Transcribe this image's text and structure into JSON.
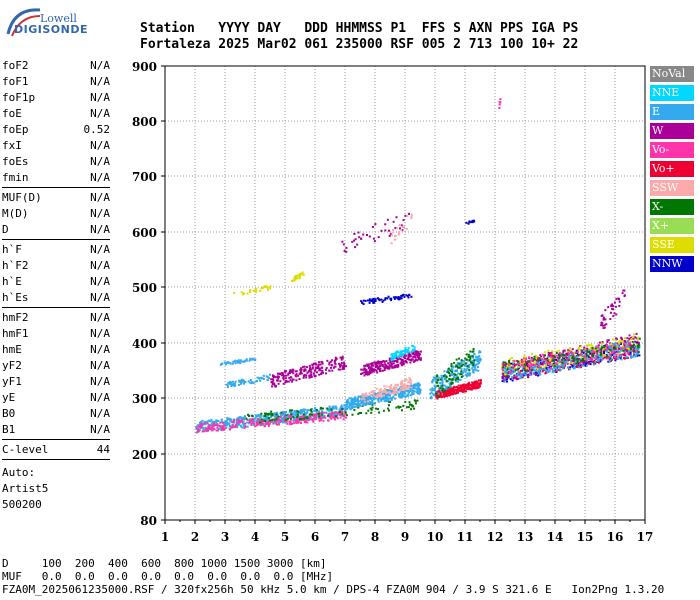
{
  "logo": {
    "line1": "Lowell",
    "line2": "DIGISONDE"
  },
  "header": {
    "line1": "Station   YYYY DAY   DDD HHMMSS P1  FFS S AXN PPS IGA PS",
    "line2": "Fortaleza 2025 Mar02 061 235000 RSF 005 2 713 100 10+ 22"
  },
  "sidebar": {
    "group1": [
      {
        "label": "foF2",
        "value": "N/A"
      },
      {
        "label": "foF1",
        "value": "N/A"
      },
      {
        "label": "foF1p",
        "value": "N/A"
      },
      {
        "label": "foE",
        "value": "N/A"
      },
      {
        "label": "foEp",
        "value": "0.52"
      },
      {
        "label": "fxI",
        "value": "N/A"
      },
      {
        "label": "foEs",
        "value": "N/A"
      },
      {
        "label": "fmin",
        "value": "N/A"
      }
    ],
    "group2": [
      {
        "label": "MUF(D)",
        "value": "N/A"
      },
      {
        "label": "M(D)",
        "value": "N/A"
      },
      {
        "label": "D",
        "value": "N/A"
      }
    ],
    "group3": [
      {
        "label": "h`F",
        "value": "N/A"
      },
      {
        "label": "h`F2",
        "value": "N/A"
      },
      {
        "label": "h`E",
        "value": "N/A"
      },
      {
        "label": "h`Es",
        "value": "N/A"
      }
    ],
    "group4": [
      {
        "label": "hmF2",
        "value": "N/A"
      },
      {
        "label": "hmF1",
        "value": "N/A"
      },
      {
        "label": "hmE",
        "value": "N/A"
      },
      {
        "label": "yF2",
        "value": "N/A"
      },
      {
        "label": "yF1",
        "value": "N/A"
      },
      {
        "label": "yE",
        "value": "N/A"
      },
      {
        "label": "B0",
        "value": "N/A"
      },
      {
        "label": "B1",
        "value": "N/A"
      }
    ],
    "clevel": {
      "label": "C-level",
      "value": "44"
    },
    "auto": [
      "Auto:",
      "Artist5",
      "500200"
    ]
  },
  "footer": {
    "line1": "D     100  200  400  600  800 1000 1500 3000 [km]",
    "line2": "MUF   0.0  0.0  0.0  0.0  0.0  0.0  0.0  0.0 [MHz]",
    "line3": "FZA0M_2025061235000.RSF / 320fx256h 50 kHz 5.0 km / DPS-4 FZA0M 904 / 3.9 S 321.6 E   Ion2Png 1.3.20"
  },
  "chart_data": {
    "type": "scatter",
    "xlim": [
      1,
      17
    ],
    "ylim": [
      80,
      900
    ],
    "y_scale": "nonlinear",
    "x_ticks": [
      1,
      2,
      3,
      4,
      5,
      6,
      7,
      8,
      9,
      10,
      11,
      12,
      13,
      14,
      15,
      16,
      17
    ],
    "y_ticks": [
      80,
      200,
      300,
      400,
      500,
      600,
      700,
      800,
      900
    ],
    "legend_position": "right",
    "legend": [
      {
        "name": "NoVal",
        "color": "#888888"
      },
      {
        "name": "NNE",
        "color": "#00d8ff"
      },
      {
        "name": "E",
        "color": "#33aaee"
      },
      {
        "name": "W",
        "color": "#aa0099"
      },
      {
        "name": "Vo-",
        "color": "#ff33aa"
      },
      {
        "name": "Vo+",
        "color": "#ee0033"
      },
      {
        "name": "SSW",
        "color": "#ffaaaa"
      },
      {
        "name": "X-",
        "color": "#007700"
      },
      {
        "name": "X+",
        "color": "#99dd55"
      },
      {
        "name": "SSE",
        "color": "#dddd00"
      },
      {
        "name": "NNW",
        "color": "#0000cc"
      }
    ],
    "clusters": [
      {
        "color": "#33aaee",
        "x0": 2.0,
        "x1": 7.0,
        "y0": 240,
        "y1": 290,
        "n": 500
      },
      {
        "color": "#ff33aa",
        "x0": 2.0,
        "x1": 7.0,
        "y0": 240,
        "y1": 280,
        "n": 250
      },
      {
        "color": "#007700",
        "x0": 3.5,
        "x1": 9.5,
        "y0": 255,
        "y1": 300,
        "n": 120
      },
      {
        "color": "#33aaee",
        "x0": 7.0,
        "x1": 9.5,
        "y0": 280,
        "y1": 330,
        "n": 350
      },
      {
        "color": "#ffaaaa",
        "x0": 7.5,
        "x1": 9.2,
        "y0": 290,
        "y1": 340,
        "n": 120
      },
      {
        "color": "#aa0099",
        "x0": 4.5,
        "x1": 7.0,
        "y0": 320,
        "y1": 380,
        "n": 200
      },
      {
        "color": "#aa0099",
        "x0": 7.5,
        "x1": 9.5,
        "y0": 340,
        "y1": 390,
        "n": 260
      },
      {
        "color": "#33aaee",
        "x0": 2.8,
        "x1": 4.0,
        "y0": 360,
        "y1": 375,
        "n": 40
      },
      {
        "color": "#33aaee",
        "x0": 3.0,
        "x1": 4.5,
        "y0": 320,
        "y1": 345,
        "n": 60
      },
      {
        "color": "#00d8ff",
        "x0": 8.5,
        "x1": 9.3,
        "y0": 370,
        "y1": 400,
        "n": 60
      },
      {
        "color": "#ee0033",
        "x0": 10.0,
        "x1": 11.5,
        "y0": 300,
        "y1": 335,
        "n": 260
      },
      {
        "color": "#33aaee",
        "x0": 9.8,
        "x1": 11.5,
        "y0": 300,
        "y1": 390,
        "n": 220
      },
      {
        "color": "#007700",
        "x0": 10.0,
        "x1": 11.3,
        "y0": 300,
        "y1": 400,
        "n": 80
      },
      {
        "color": "#0000cc",
        "x0": 12.2,
        "x1": 16.8,
        "y0": 330,
        "y1": 410,
        "n": 260
      },
      {
        "color": "#aa0099",
        "x0": 12.2,
        "x1": 16.8,
        "y0": 330,
        "y1": 420,
        "n": 260
      },
      {
        "color": "#ee0033",
        "x0": 12.2,
        "x1": 16.8,
        "y0": 330,
        "y1": 410,
        "n": 160
      },
      {
        "color": "#dddd00",
        "x0": 12.2,
        "x1": 16.8,
        "y0": 340,
        "y1": 420,
        "n": 160
      },
      {
        "color": "#33aaee",
        "x0": 12.2,
        "x1": 16.8,
        "y0": 330,
        "y1": 410,
        "n": 220
      },
      {
        "color": "#ff33aa",
        "x0": 12.2,
        "x1": 16.8,
        "y0": 340,
        "y1": 410,
        "n": 100
      },
      {
        "color": "#007700",
        "x0": 12.2,
        "x1": 16.8,
        "y0": 340,
        "y1": 410,
        "n": 80
      },
      {
        "color": "#0000cc",
        "x0": 7.5,
        "x1": 9.2,
        "y0": 470,
        "y1": 490,
        "n": 60
      },
      {
        "color": "#dddd00",
        "x0": 5.2,
        "x1": 5.6,
        "y0": 510,
        "y1": 530,
        "n": 25
      },
      {
        "color": "#dddd00",
        "x0": 3.2,
        "x1": 4.5,
        "y0": 485,
        "y1": 505,
        "n": 25
      },
      {
        "color": "#aa0099",
        "x0": 6.8,
        "x1": 9.1,
        "y0": 560,
        "y1": 640,
        "n": 40
      },
      {
        "color": "#ffaaaa",
        "x0": 8.5,
        "x1": 9.2,
        "y0": 580,
        "y1": 640,
        "n": 20
      },
      {
        "color": "#0000cc",
        "x0": 11.0,
        "x1": 11.3,
        "y0": 615,
        "y1": 625,
        "n": 10
      },
      {
        "color": "#aa0099",
        "x0": 15.5,
        "x1": 16.3,
        "y0": 420,
        "y1": 500,
        "n": 40
      },
      {
        "color": "#ff33aa",
        "x0": 12.1,
        "x1": 12.2,
        "y0": 820,
        "y1": 860,
        "n": 5
      }
    ]
  }
}
